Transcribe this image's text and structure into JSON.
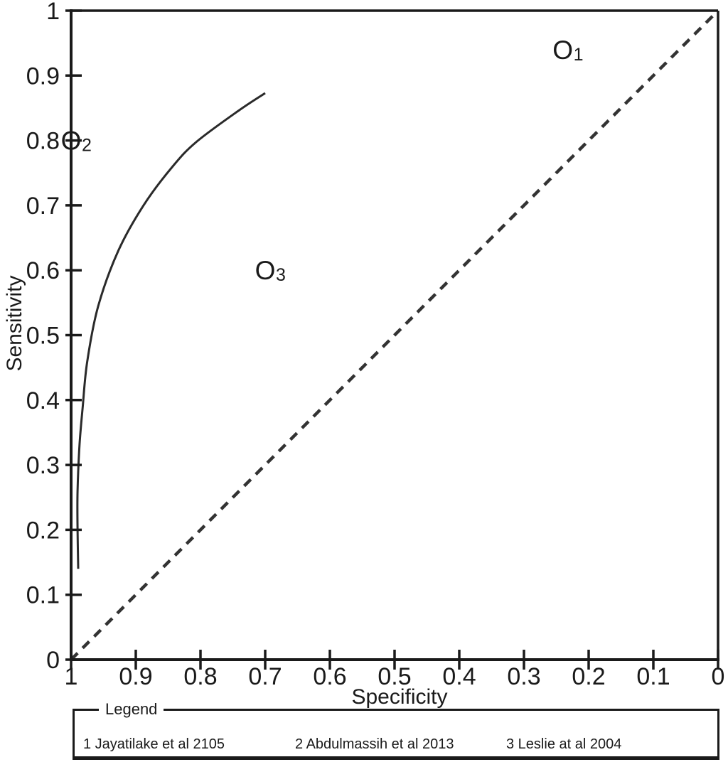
{
  "colors": {
    "background": "#ffffff",
    "ink": "#1a1a1a",
    "curve": "#2a2a2a",
    "reference": "#333333"
  },
  "chart_data": {
    "type": "scatter",
    "title": "",
    "xlabel": "Specificity",
    "ylabel": "Sensitivity",
    "x_axis": {
      "label": "Specificity",
      "min": 0,
      "max": 1,
      "reversed": true,
      "ticks": [
        {
          "label": "1",
          "value": 1.0
        },
        {
          "label": "0.9",
          "value": 0.9
        },
        {
          "label": "0.8",
          "value": 0.8
        },
        {
          "label": "0.7",
          "value": 0.7
        },
        {
          "label": "0.6",
          "value": 0.6
        },
        {
          "label": "0.5",
          "value": 0.5
        },
        {
          "label": "0.4",
          "value": 0.4
        },
        {
          "label": "0.3",
          "value": 0.3
        },
        {
          "label": "0.2",
          "value": 0.2
        },
        {
          "label": "0.1",
          "value": 0.1
        },
        {
          "label": "0",
          "value": 0.0
        }
      ]
    },
    "y_axis": {
      "label": "Sensitivity",
      "min": 0,
      "max": 1,
      "ticks": [
        {
          "label": "0",
          "value": 0.0
        },
        {
          "label": "0.1",
          "value": 0.1
        },
        {
          "label": "0.2",
          "value": 0.2
        },
        {
          "label": "0.3",
          "value": 0.3
        },
        {
          "label": "0.4",
          "value": 0.4
        },
        {
          "label": "0.5",
          "value": 0.5
        },
        {
          "label": "0.6",
          "value": 0.6
        },
        {
          "label": "0.7",
          "value": 0.7
        },
        {
          "label": "0.8",
          "value": 0.8
        },
        {
          "label": "0.9",
          "value": 0.9
        },
        {
          "label": "1",
          "value": 1.0
        }
      ]
    },
    "marker_glyph": "O",
    "points": [
      {
        "id": "1",
        "study": "Jayatilake et al 2105",
        "specificity": 0.24,
        "sensitivity": 0.94
      },
      {
        "id": "2",
        "study": "Abdulmassih et al 2013",
        "specificity": 1.0,
        "sensitivity": 0.8
      },
      {
        "id": "3",
        "study": "Leslie at al 2004",
        "specificity": 0.7,
        "sensitivity": 0.6
      }
    ],
    "sroc_curve": [
      [
        0.989,
        0.14
      ],
      [
        0.99,
        0.2
      ],
      [
        0.99,
        0.26
      ],
      [
        0.987,
        0.33
      ],
      [
        0.982,
        0.39
      ],
      [
        0.975,
        0.46
      ],
      [
        0.958,
        0.545
      ],
      [
        0.927,
        0.63
      ],
      [
        0.888,
        0.7
      ],
      [
        0.843,
        0.76
      ],
      [
        0.806,
        0.798
      ],
      [
        0.741,
        0.846
      ],
      [
        0.7,
        0.873
      ]
    ],
    "reference_line": {
      "style": "dashed",
      "from": {
        "specificity": 1.0,
        "sensitivity": 0.0
      },
      "to": {
        "specificity": 0.0,
        "sensitivity": 1.0
      }
    },
    "grid": false,
    "legend_position": "bottom"
  },
  "legend": {
    "title": "Legend",
    "items": [
      {
        "label": "1 Jayatilake et al 2105"
      },
      {
        "label": "2 Abdulmassih et al 2013"
      },
      {
        "label": "3 Leslie at al 2004"
      }
    ]
  }
}
